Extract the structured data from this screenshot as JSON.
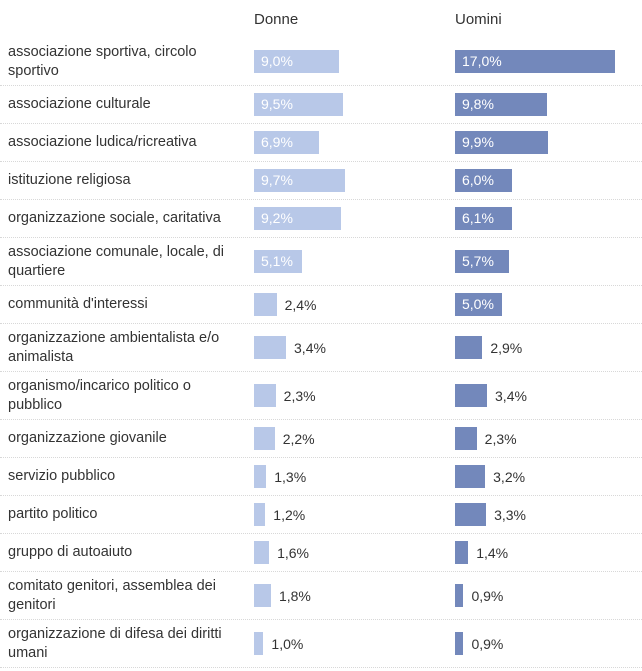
{
  "chart_data": {
    "type": "bar",
    "orientation": "horizontal",
    "categories": [
      "associazione sportiva, circolo sportivo",
      "associazione culturale",
      "associazione ludica/ricreativa",
      "istituzione religiosa",
      "organizzazione sociale, caritativa",
      "associazione comunale, locale, di quartiere",
      "communità d'interessi",
      "organizzazione ambientalista e/o animalista",
      "organismo/incarico politico o pubblico",
      "organizzazione giovanile",
      "servizio pubblico",
      "partito politico",
      "gruppo di autoaiuto",
      "comitato genitori, assemblea dei genitori",
      "organizzazione di difesa dei diritti umani"
    ],
    "series": [
      {
        "name": "Donne",
        "color": "#b8c8e8",
        "values": [
          9.0,
          9.5,
          6.9,
          9.7,
          9.2,
          5.1,
          2.4,
          3.4,
          2.3,
          2.2,
          1.3,
          1.2,
          1.6,
          1.8,
          1.0
        ],
        "value_labels": [
          "9,0%",
          "9,5%",
          "6,9%",
          "9,7%",
          "9,2%",
          "5,1%",
          "2,4%",
          "3,4%",
          "2,3%",
          "2,2%",
          "1,3%",
          "1,2%",
          "1,6%",
          "1,8%",
          "1,0%"
        ]
      },
      {
        "name": "Uomini",
        "color": "#7388bb",
        "values": [
          17.0,
          9.8,
          9.9,
          6.0,
          6.1,
          5.7,
          5.0,
          2.9,
          3.4,
          2.3,
          3.2,
          3.3,
          1.4,
          0.9,
          0.9
        ],
        "value_labels": [
          "17,0%",
          "9,8%",
          "9,9%",
          "6,0%",
          "6,1%",
          "5,7%",
          "5,0%",
          "2,9%",
          "3,4%",
          "2,3%",
          "3,2%",
          "3,3%",
          "1,4%",
          "0,9%",
          "0,9%"
        ]
      }
    ]
  }
}
